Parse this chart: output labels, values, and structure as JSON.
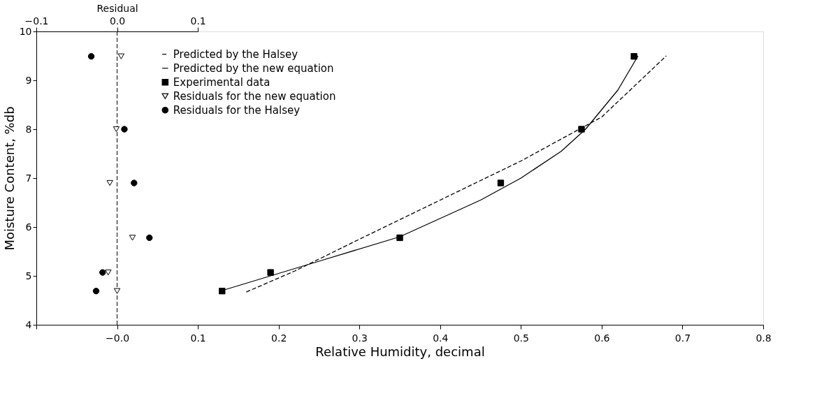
{
  "chart_data": {
    "type": "scatter",
    "xlabel": "Relative Humidity, decimal",
    "ylabel": "Moisture Content, %db",
    "x2label": "Residual",
    "xlim": [
      -0.1,
      0.8
    ],
    "xticks": [
      {
        "value": -0.1,
        "label": null
      },
      {
        "value": 0,
        "label": "−0.0"
      },
      0.1,
      0.2,
      0.3,
      0.4,
      0.5,
      0.6,
      0.7,
      0.8
    ],
    "x2lim": [
      -0.1,
      0.1
    ],
    "x2ticks": [
      {
        "value": -0.1,
        "label": "−0.1"
      },
      {
        "value": 0,
        "label": "0.0"
      },
      0.1
    ],
    "ylim": [
      4,
      10
    ],
    "yticks": [
      4,
      5,
      6,
      7,
      8,
      9,
      10
    ],
    "grid": false,
    "legend": "top",
    "ref_lines": [
      {
        "axis": "x",
        "value": 0,
        "line_style": "dashed"
      }
    ],
    "series": [
      {
        "name": "Predicted by the Halsey",
        "type": "line",
        "line_style": "dashed",
        "marker": "none",
        "color": "#000000",
        "x": [
          0.16,
          0.22,
          0.3,
          0.4,
          0.5,
          0.6,
          0.68
        ],
        "values": [
          4.67,
          5.1,
          5.75,
          6.55,
          7.35,
          8.25,
          9.5
        ]
      },
      {
        "name": "Predicted by the new equation",
        "type": "line",
        "line_style": "solid",
        "marker": "none",
        "color": "#000000",
        "x": [
          0.13,
          0.2,
          0.25,
          0.35,
          0.45,
          0.5,
          0.55,
          0.58,
          0.62,
          0.645
        ],
        "values": [
          4.7,
          5.05,
          5.3,
          5.8,
          6.55,
          7.0,
          7.55,
          8.0,
          8.8,
          9.5
        ]
      },
      {
        "name": "Experimental data",
        "marker": "square",
        "color": "#000000",
        "x": [
          0.13,
          0.19,
          0.35,
          0.475,
          0.575,
          0.64
        ],
        "values": [
          4.69,
          5.07,
          5.78,
          6.9,
          8.0,
          9.49
        ]
      },
      {
        "name": "Residuals for the new equation",
        "marker": "triangle",
        "color": "#ffffff",
        "axis": "x2",
        "x": [
          0.0,
          -0.011,
          0.019,
          -0.009,
          -0.001,
          0.005
        ],
        "values": [
          4.69,
          5.07,
          5.78,
          6.9,
          8.0,
          9.49
        ]
      },
      {
        "name": "Residuals for the Halsey",
        "marker": "circle",
        "color": "#000000",
        "axis": "x2",
        "x": [
          -0.026,
          -0.018,
          0.04,
          0.021,
          0.009,
          -0.032
        ],
        "values": [
          4.69,
          5.07,
          5.78,
          6.9,
          8.0,
          9.49
        ]
      }
    ]
  }
}
